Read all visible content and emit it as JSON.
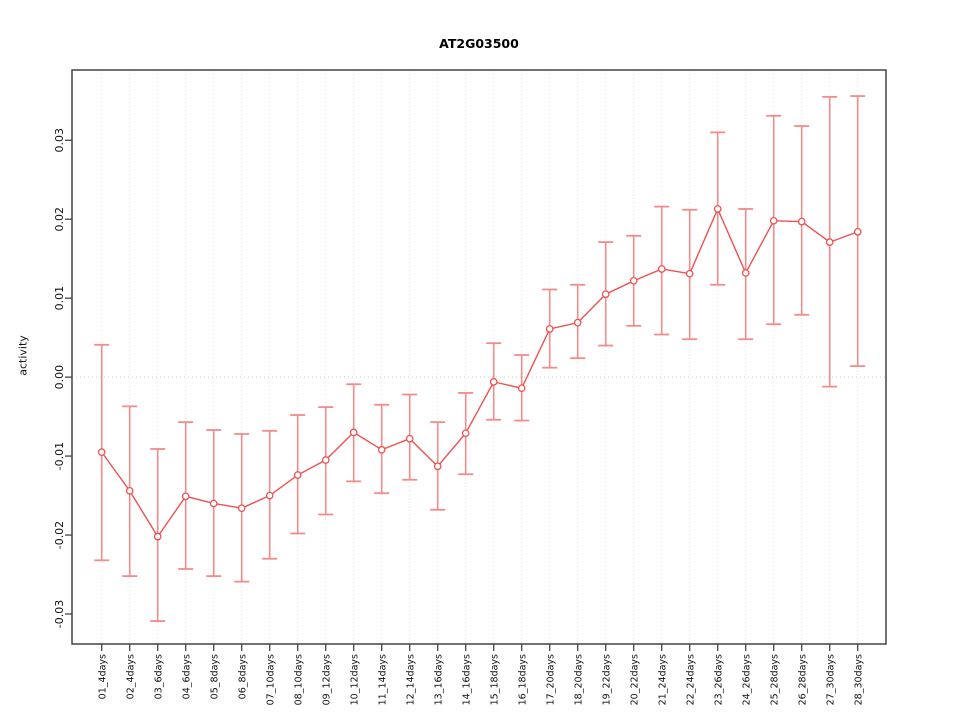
{
  "chart_data": {
    "type": "line",
    "title": "AT2G03500",
    "ylabel": "activity",
    "xlabel": "",
    "point_style": "open-circle",
    "legend": "none",
    "categories": [
      "01_4days",
      "02_4days",
      "03_6days",
      "04_6days",
      "05_8days",
      "06_8days",
      "07_10days",
      "08_10days",
      "09_12days",
      "10_12days",
      "11_14days",
      "12_14days",
      "13_16days",
      "14_16days",
      "15_18days",
      "16_18days",
      "17_20days",
      "18_20days",
      "19_22days",
      "20_22days",
      "21_24days",
      "22_24days",
      "23_26days",
      "24_26days",
      "25_28days",
      "26_28days",
      "27_30days",
      "28_30days"
    ],
    "series": [
      {
        "name": "AT2G03500",
        "values": [
          -0.0095,
          -0.0144,
          -0.0202,
          -0.0151,
          -0.016,
          -0.0166,
          -0.015,
          -0.0124,
          -0.0105,
          -0.007,
          -0.0092,
          -0.0078,
          -0.0113,
          -0.0071,
          -0.0006,
          -0.0014,
          0.0061,
          0.0069,
          0.0105,
          0.0122,
          0.0137,
          0.0131,
          0.0213,
          0.0132,
          0.0198,
          0.0197,
          0.0171,
          0.0184
        ],
        "error_low": [
          -0.0232,
          -0.0252,
          -0.0309,
          -0.0243,
          -0.0252,
          -0.0259,
          -0.023,
          -0.0198,
          -0.0174,
          -0.0132,
          -0.0147,
          -0.013,
          -0.0168,
          -0.0123,
          -0.0054,
          -0.0055,
          0.0012,
          0.0024,
          0.004,
          0.0065,
          0.0054,
          0.0048,
          0.0117,
          0.0048,
          0.0067,
          0.0079,
          -0.0012,
          0.0014
        ],
        "error_high": [
          0.0041,
          -0.0037,
          -0.0091,
          -0.0057,
          -0.0067,
          -0.0072,
          -0.0068,
          -0.0048,
          -0.0038,
          -0.0009,
          -0.0035,
          -0.0022,
          -0.0057,
          -0.002,
          0.0043,
          0.0028,
          0.0111,
          0.0117,
          0.0171,
          0.0179,
          0.0216,
          0.0212,
          0.031,
          0.0213,
          0.0331,
          0.0318,
          0.0355,
          0.0356
        ]
      }
    ],
    "ylim": [
      -0.0338,
      0.0389
    ],
    "yticks": [
      -0.03,
      -0.02,
      -0.01,
      0,
      0.01,
      0.02,
      0.03
    ],
    "ytick_labels": [
      "-0.03",
      "-0.02",
      "-0.01",
      "0.00",
      "0.01",
      "0.02",
      "0.03"
    ],
    "grid": {
      "vertical": "dotted",
      "zero_line": "dotted"
    },
    "colors": {
      "series": "#ed5151",
      "error_bar": "#f28b8b",
      "grid": "#dedede",
      "zero_line": "#c9c9c9",
      "axis": "#444444",
      "text": "#111111"
    }
  }
}
